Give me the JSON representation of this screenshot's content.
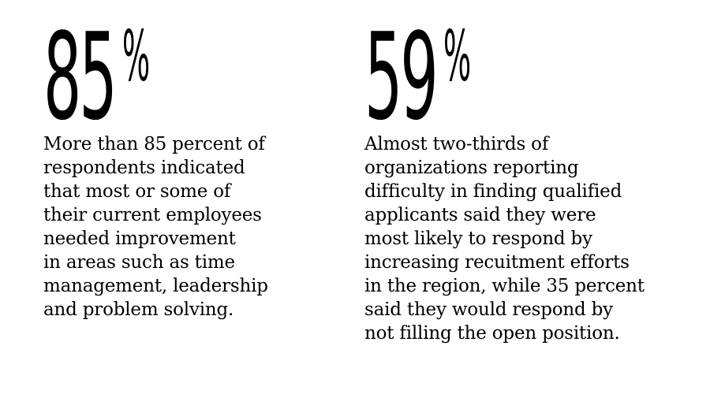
{
  "stats": [
    {
      "number": "85",
      "unit": "%",
      "text": "More than 85 percent of\nrespondents indicated\nthat most or some of\ntheir current employees\nneeded improvement\nin areas such as time\nmanagement, leadership\nand problem solving."
    },
    {
      "number": "59",
      "unit": "%",
      "text": "Almost two-thirds of\norganizations reporting\ndifficulty in finding qualified\napplicants said they were\nmost likely to respond by\nincreasing recuitment efforts\nin the region, while 35 percent\nsaid they would respond by\nnot filling the open position."
    }
  ]
}
